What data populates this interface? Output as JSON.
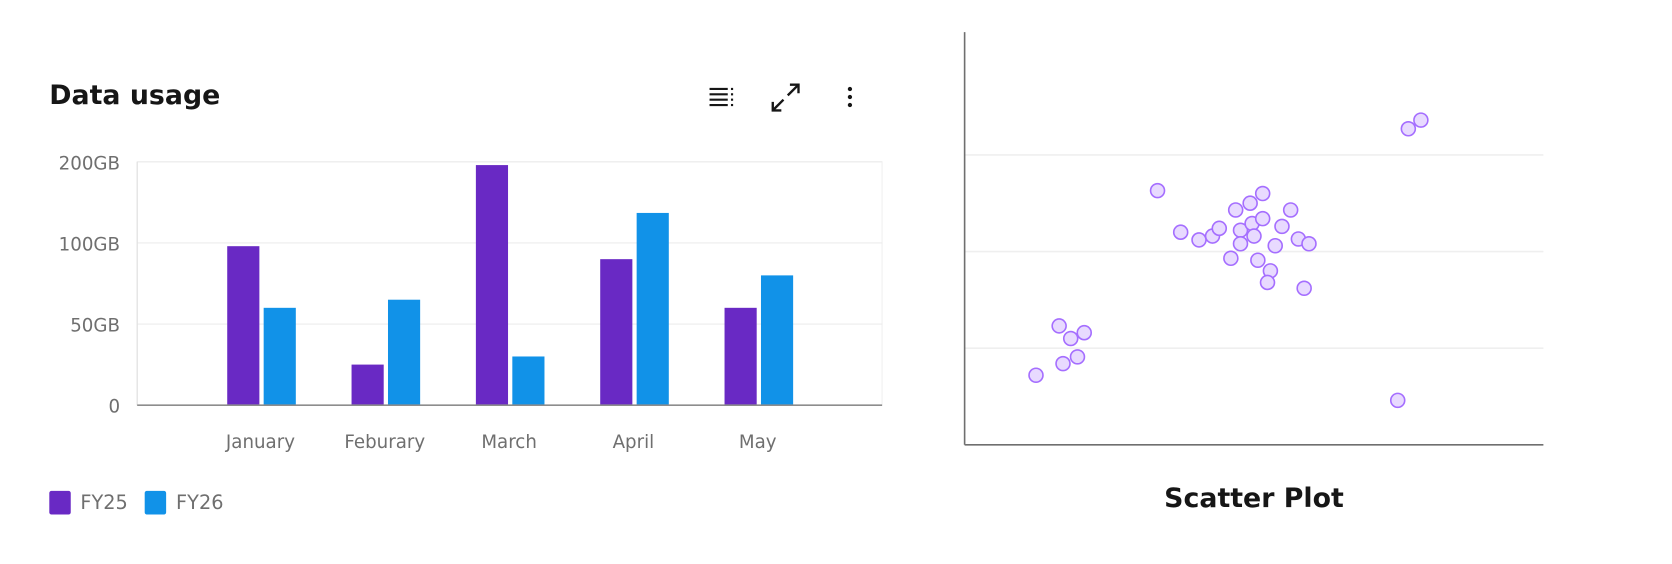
{
  "chart_data": [
    {
      "type": "bar",
      "title": "Data usage",
      "categories": [
        "January",
        "Feburary",
        "March",
        "April",
        "May"
      ],
      "y_ticks": [
        0,
        50,
        100,
        200
      ],
      "y_tick_labels": [
        "0",
        "50GB",
        "100GB",
        "200GB"
      ],
      "ylim": [
        0,
        200
      ],
      "y_scale": "tick-spaced (0, 50, 100, 200 equally spaced)",
      "grid": true,
      "legend_placement": "bottom-left",
      "series": [
        {
          "name": "FY25",
          "color": "#6929c4",
          "values": [
            98,
            25,
            196,
            90,
            60
          ]
        },
        {
          "name": "FY26",
          "color": "#1192e8",
          "values": [
            60,
            65,
            30,
            137,
            80
          ]
        }
      ],
      "toolbar": [
        {
          "icon": "legend-list-icon"
        },
        {
          "icon": "maximize-icon"
        },
        {
          "icon": "overflow-menu-vertical-icon"
        }
      ]
    },
    {
      "type": "scatter",
      "title": "Scatter Plot",
      "grid": true,
      "xlim": [
        0,
        6
      ],
      "ylim": [
        0,
        4.27
      ],
      "y_gridlines": [
        1,
        2,
        3
      ],
      "point_fill": "#e8daff",
      "point_stroke": "#a56eff",
      "points": [
        [
          2.0,
          2.63
        ],
        [
          4.6,
          3.27
        ],
        [
          4.73,
          3.36
        ],
        [
          2.24,
          2.2
        ],
        [
          2.43,
          2.12
        ],
        [
          2.57,
          2.16
        ],
        [
          2.64,
          2.24
        ],
        [
          2.81,
          2.43
        ],
        [
          2.96,
          2.5
        ],
        [
          3.09,
          2.6
        ],
        [
          2.86,
          2.22
        ],
        [
          2.98,
          2.29
        ],
        [
          3.0,
          2.16
        ],
        [
          3.09,
          2.34
        ],
        [
          2.86,
          2.08
        ],
        [
          2.76,
          1.93
        ],
        [
          3.22,
          2.06
        ],
        [
          3.29,
          2.26
        ],
        [
          3.38,
          2.43
        ],
        [
          3.46,
          2.13
        ],
        [
          3.57,
          2.08
        ],
        [
          3.04,
          1.91
        ],
        [
          3.17,
          1.8
        ],
        [
          3.14,
          1.68
        ],
        [
          3.52,
          1.62
        ],
        [
          0.98,
          1.23
        ],
        [
          1.24,
          1.16
        ],
        [
          1.1,
          1.1
        ],
        [
          1.17,
          0.91
        ],
        [
          1.02,
          0.84
        ],
        [
          0.74,
          0.72
        ],
        [
          4.49,
          0.46
        ]
      ]
    }
  ]
}
